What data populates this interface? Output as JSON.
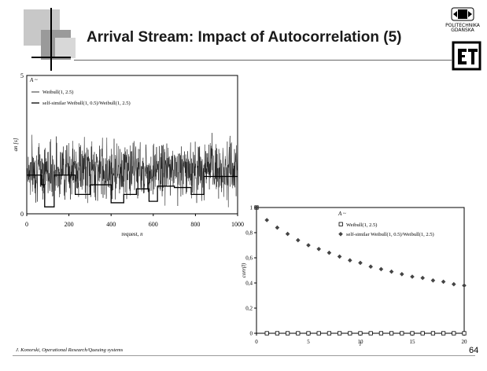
{
  "slide": {
    "title": "Arrival Stream: Impact of Autocorrelation (5)",
    "footer": "J. Konorski, Operational Research/Queuing systems",
    "page_number": "64",
    "logo_text_line1": "POLITECHNIKA",
    "logo_text_line2": "GDAŃSKA"
  },
  "chart_data": [
    {
      "type": "line",
      "xlabel": "request, n",
      "ylabel": "an [s]",
      "xlim": [
        0,
        1000
      ],
      "ylim": [
        0,
        5
      ],
      "xticks": [
        "0",
        "200",
        "400",
        "600",
        "800",
        "1000"
      ],
      "yticks": [
        "0",
        "5"
      ],
      "legend_heading": "A ~",
      "legend_position": "top-left",
      "series": [
        {
          "name": "Weibull(1, 2.5)",
          "color": "#1a1a1a",
          "n_points": 1000,
          "approx_mean": 1.3,
          "approx_range": [
            0.1,
            3.1
          ]
        },
        {
          "name": "self-similar Weibull(1, 0.5)/Weibull(1, 2.5)",
          "color": "#000000",
          "step_levels": [
            [
              0,
              1.4
            ],
            [
              70,
              1.05
            ],
            [
              85,
              0.25
            ],
            [
              130,
              1.4
            ],
            [
              230,
              0.7
            ],
            [
              300,
              1.05
            ],
            [
              400,
              0.4
            ],
            [
              460,
              0.7
            ],
            [
              520,
              0.9
            ],
            [
              580,
              0.45
            ],
            [
              620,
              1.0
            ],
            [
              700,
              0.95
            ],
            [
              780,
              0.7
            ],
            [
              840,
              1.35
            ],
            [
              1000,
              1.35
            ]
          ]
        }
      ]
    },
    {
      "type": "scatter",
      "xlabel": "l",
      "ylabel": "corr(l)",
      "xlim": [
        0,
        20
      ],
      "ylim": [
        0,
        1
      ],
      "xticks": [
        "0",
        "5",
        "10",
        "15",
        "20"
      ],
      "yticks": [
        "0",
        "0,2",
        "0,4",
        "0,6",
        "0,8",
        "1"
      ],
      "legend_heading": "A ~",
      "legend_position": "top-right",
      "series": [
        {
          "name": "Weibull(1, 2.5)",
          "marker": "open-square",
          "x": [
            0,
            1,
            2,
            3,
            4,
            5,
            6,
            7,
            8,
            9,
            10,
            11,
            12,
            13,
            14,
            15,
            16,
            17,
            18,
            19,
            20
          ],
          "values": [
            1,
            0,
            0,
            0,
            0,
            0,
            0,
            0,
            0,
            0,
            0,
            0,
            0,
            0,
            0,
            0,
            0,
            0,
            0,
            0,
            0
          ]
        },
        {
          "name": "self-similar Weibull(1, 0.5)/Weibull(1, 2.5)",
          "marker": "filled-diamond",
          "x": [
            0,
            1,
            2,
            3,
            4,
            5,
            6,
            7,
            8,
            9,
            10,
            11,
            12,
            13,
            14,
            15,
            16,
            17,
            18,
            19,
            20
          ],
          "values": [
            1,
            0.9,
            0.84,
            0.79,
            0.74,
            0.7,
            0.67,
            0.64,
            0.61,
            0.58,
            0.56,
            0.53,
            0.51,
            0.49,
            0.47,
            0.45,
            0.44,
            0.42,
            0.41,
            0.39,
            0.38
          ]
        }
      ]
    }
  ]
}
